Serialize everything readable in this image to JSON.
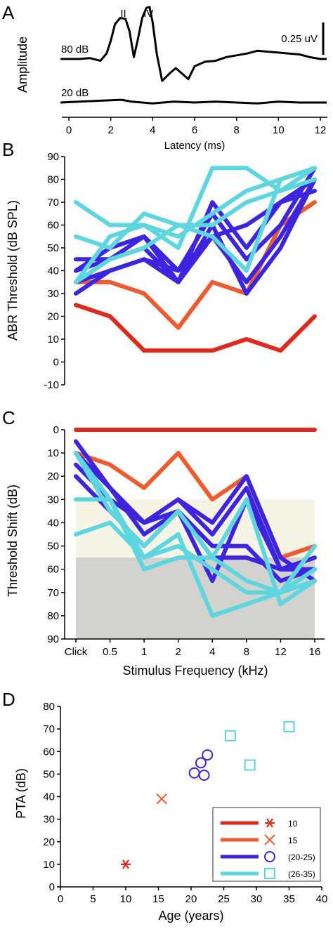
{
  "palette": {
    "g10": "#dd2a1b",
    "g15": "#f05a2e",
    "g20_25": "#3d25e0",
    "g26_35": "#5dd6df",
    "mild_band": "#f6f4e4",
    "severe_band": "#d2d2cf"
  },
  "chart_data": [
    {
      "panel": "A",
      "type": "line",
      "xlabel": "Latency (ms)",
      "ylabel": "Amplitude",
      "xlim": [
        0,
        12
      ],
      "xticks": [
        0,
        2,
        4,
        6,
        8,
        10,
        12
      ],
      "scale_bar": "0.25 uV",
      "peak_labels": [
        {
          "label": "II",
          "x": 2.6
        },
        {
          "label": "IV",
          "x": 3.8
        }
      ],
      "series": [
        {
          "name": "80 dB",
          "x": [
            -0.4,
            0.5,
            1.0,
            1.5,
            1.8,
            2.0,
            2.2,
            2.45,
            2.7,
            2.9,
            3.1,
            3.3,
            3.5,
            3.7,
            3.85,
            4.0,
            4.2,
            4.45,
            4.8,
            5.1,
            5.4,
            5.7,
            6.0,
            6.5,
            7.0,
            7.5,
            8.0,
            8.5,
            9.0,
            9.5,
            10.0,
            10.5,
            11.0,
            11.5,
            12.0,
            12.3
          ],
          "y": [
            0.0,
            0.0,
            0.01,
            -0.02,
            0.06,
            0.2,
            0.38,
            0.45,
            0.44,
            0.3,
            0.02,
            0.22,
            0.45,
            0.56,
            0.57,
            0.4,
            0.05,
            -0.24,
            -0.16,
            -0.1,
            -0.16,
            -0.22,
            -0.08,
            -0.03,
            -0.02,
            0.02,
            0.04,
            0.06,
            0.09,
            0.08,
            0.07,
            0.06,
            0.05,
            0.02,
            0.0,
            0.0
          ]
        },
        {
          "name": "20 dB",
          "x": [
            -0.4,
            0.5,
            1.5,
            2.5,
            3.0,
            4.0,
            5.0,
            6.0,
            7.0,
            8.0,
            9.0,
            10.0,
            11.0,
            12.3
          ],
          "y": [
            0.0,
            0.01,
            0.02,
            0.03,
            0.01,
            -0.01,
            0.01,
            0.0,
            0.01,
            0.0,
            -0.01,
            0.01,
            0.0,
            0.0
          ]
        }
      ]
    },
    {
      "panel": "B",
      "type": "line",
      "xlabel": "",
      "ylabel": "ABR Threshold (dB SPL)",
      "ylim": [
        -10,
        90
      ],
      "yticks": [
        -10,
        0,
        10,
        20,
        30,
        40,
        50,
        60,
        70,
        80,
        90
      ],
      "categories": [
        "Click",
        "0.5",
        "1",
        "2",
        "4",
        "8",
        "12",
        "16"
      ],
      "series": [
        {
          "group": "g10",
          "values": [
            25,
            20,
            5,
            5,
            5,
            10,
            5,
            20
          ]
        },
        {
          "group": "g15",
          "values": [
            35,
            35,
            30,
            15,
            35,
            30,
            60,
            70
          ]
        },
        {
          "group": "g20_25",
          "values": [
            45,
            45,
            55,
            40,
            65,
            45,
            60,
            85
          ]
        },
        {
          "group": "g20_25",
          "values": [
            40,
            45,
            50,
            35,
            70,
            50,
            70,
            75
          ]
        },
        {
          "group": "g20_25",
          "values": [
            35,
            40,
            45,
            40,
            55,
            35,
            55,
            80
          ]
        },
        {
          "group": "g20_25",
          "values": [
            30,
            40,
            45,
            35,
            55,
            60,
            70,
            80
          ]
        },
        {
          "group": "g20_25",
          "values": [
            40,
            50,
            55,
            35,
            60,
            30,
            50,
            80
          ]
        },
        {
          "group": "g26_35",
          "values": [
            70,
            60,
            60,
            50,
            85,
            85,
            75,
            85
          ]
        },
        {
          "group": "g26_35",
          "values": [
            55,
            50,
            65,
            60,
            55,
            40,
            80,
            85
          ]
        },
        {
          "group": "g26_35",
          "values": [
            35,
            45,
            50,
            60,
            60,
            70,
            75,
            80
          ]
        },
        {
          "group": "g26_35",
          "values": [
            35,
            55,
            60,
            55,
            65,
            75,
            80,
            85
          ]
        }
      ]
    },
    {
      "panel": "C",
      "type": "line",
      "xlabel": "Stimulus Frequency (kHz)",
      "ylabel": "Threshold Shift (dB)",
      "ylim": [
        0,
        90
      ],
      "y_inverted": true,
      "yticks": [
        0,
        10,
        20,
        30,
        40,
        50,
        60,
        70,
        80,
        90
      ],
      "categories": [
        "Click",
        "0.5",
        "1",
        "2",
        "4",
        "8",
        "12",
        "16"
      ],
      "bands": [
        {
          "from": 30,
          "to": 55,
          "color_key": "mild_band"
        },
        {
          "from": 55,
          "to": 90,
          "color_key": "severe_band"
        }
      ],
      "series": [
        {
          "group": "g10",
          "values": [
            0,
            0,
            0,
            0,
            0,
            0,
            0,
            0
          ]
        },
        {
          "group": "g15",
          "values": [
            10,
            15,
            25,
            10,
            30,
            20,
            55,
            50
          ]
        },
        {
          "group": "g20_25",
          "values": [
            5,
            25,
            40,
            30,
            40,
            20,
            55,
            65
          ]
        },
        {
          "group": "g20_25",
          "values": [
            10,
            25,
            45,
            35,
            50,
            50,
            65,
            60
          ]
        },
        {
          "group": "g20_25",
          "values": [
            15,
            30,
            40,
            35,
            65,
            30,
            60,
            60
          ]
        },
        {
          "group": "g20_25",
          "values": [
            20,
            35,
            50,
            35,
            55,
            55,
            60,
            55
          ]
        },
        {
          "group": "g20_25",
          "values": [
            10,
            25,
            40,
            30,
            45,
            25,
            60,
            60
          ]
        },
        {
          "group": "g26_35",
          "values": [
            45,
            40,
            55,
            45,
            80,
            75,
            70,
            65
          ]
        },
        {
          "group": "g26_35",
          "values": [
            30,
            30,
            60,
            55,
            55,
            30,
            75,
            65
          ]
        },
        {
          "group": "g26_35",
          "values": [
            10,
            35,
            50,
            35,
            55,
            65,
            70,
            50
          ]
        },
        {
          "group": "g26_35",
          "values": [
            10,
            30,
            55,
            50,
            60,
            70,
            70,
            60
          ]
        }
      ]
    },
    {
      "panel": "D",
      "type": "scatter",
      "xlabel": "Age (years)",
      "ylabel": "PTA (dB)",
      "xlim": [
        0,
        40
      ],
      "ylim": [
        0,
        80
      ],
      "xticks": [
        0,
        5,
        10,
        15,
        20,
        25,
        30,
        35,
        40
      ],
      "yticks": [
        0,
        10,
        20,
        30,
        40,
        50,
        60,
        70,
        80
      ],
      "legend_position": "bottom-right",
      "legend": [
        {
          "group": "g10",
          "marker": "asterisk",
          "label": "10"
        },
        {
          "group": "g15",
          "marker": "x",
          "label": "15"
        },
        {
          "group": "g20_25",
          "marker": "circle",
          "label": "(20-25)"
        },
        {
          "group": "g26_35",
          "marker": "square",
          "label": "(26-35)"
        }
      ],
      "points": [
        {
          "group": "g10",
          "x": 10,
          "y": 10
        },
        {
          "group": "g15",
          "x": 15.5,
          "y": 39
        },
        {
          "group": "g20_25",
          "x": 20.5,
          "y": 50.5
        },
        {
          "group": "g20_25",
          "x": 21.5,
          "y": 55
        },
        {
          "group": "g20_25",
          "x": 22,
          "y": 49.5
        },
        {
          "group": "g20_25",
          "x": 22.5,
          "y": 58.5
        },
        {
          "group": "g26_35",
          "x": 26,
          "y": 67
        },
        {
          "group": "g26_35",
          "x": 29,
          "y": 54
        },
        {
          "group": "g26_35",
          "x": 35,
          "y": 71
        }
      ]
    }
  ]
}
